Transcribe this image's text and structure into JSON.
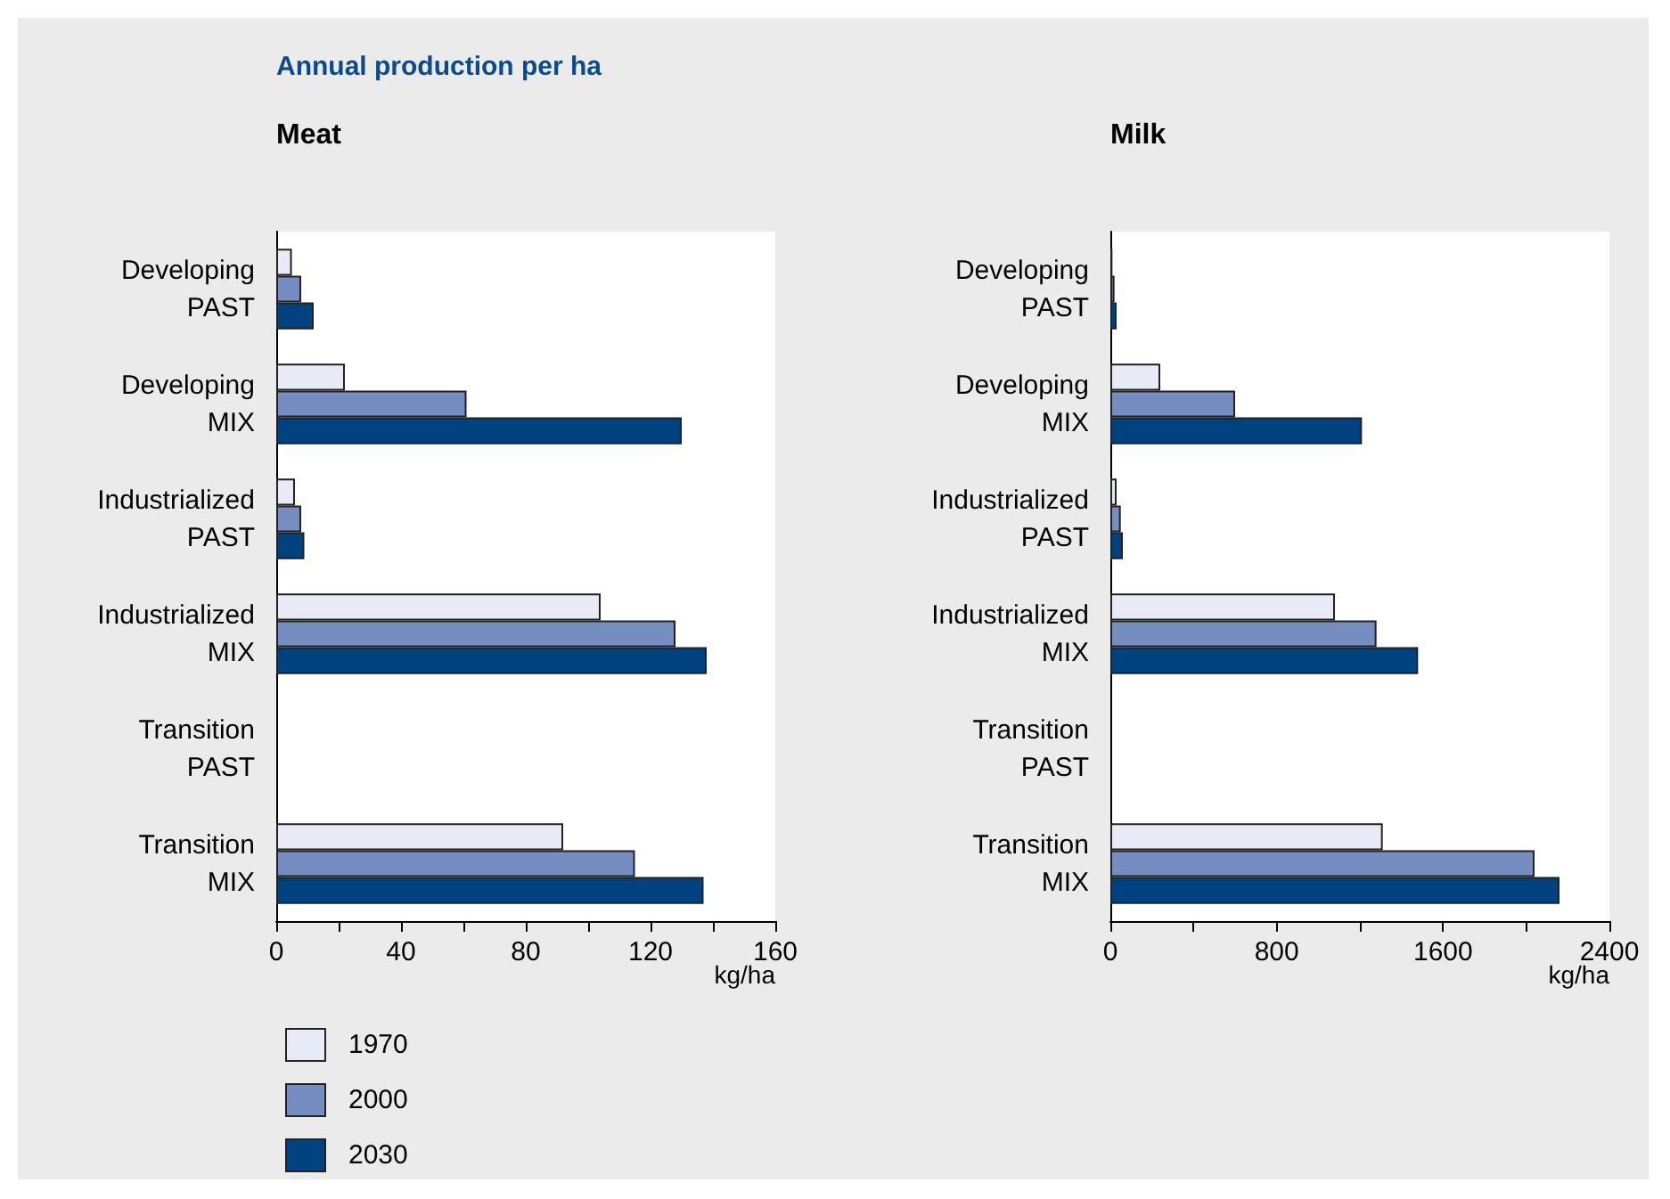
{
  "chart_data": [
    {
      "type": "bar",
      "orientation": "horizontal",
      "annotations": [
        "Annual production per ha"
      ],
      "title": "Meat",
      "xlabel": "kg/ha",
      "categories": [
        "Developing PAST",
        "Developing MIX",
        "Industrialized PAST",
        "Industrialized MIX",
        "Transition PAST",
        "Transition MIX"
      ],
      "series": [
        {
          "name": "1970",
          "color": "#e8ebf5",
          "values": [
            5,
            22,
            6,
            104,
            0,
            92
          ]
        },
        {
          "name": "2000",
          "color": "#768dc1",
          "values": [
            8,
            61,
            8,
            128,
            0,
            115
          ]
        },
        {
          "name": "2030",
          "color": "#00427f",
          "values": [
            12,
            130,
            9,
            138,
            0,
            137
          ]
        }
      ],
      "xlim": [
        0,
        160
      ],
      "xticks": [
        0,
        {
          "value": 20,
          "label": null
        },
        40,
        {
          "value": 60,
          "label": null
        },
        80,
        {
          "value": 100,
          "label": null
        },
        120,
        {
          "value": 140,
          "label": null
        },
        160
      ],
      "grid": false,
      "legend": "bottom left"
    },
    {
      "type": "bar",
      "orientation": "horizontal",
      "title": "Milk",
      "xlabel": "kg/ha",
      "categories": [
        "Developing PAST",
        "Developing MIX",
        "Industrialized PAST",
        "Industrialized MIX",
        "Transition PAST",
        "Transition MIX"
      ],
      "series": [
        {
          "name": "1970",
          "color": "#e8ebf5",
          "values": [
            10,
            240,
            30,
            1080,
            0,
            1310
          ]
        },
        {
          "name": "2000",
          "color": "#768dc1",
          "values": [
            20,
            600,
            50,
            1280,
            0,
            2040
          ]
        },
        {
          "name": "2030",
          "color": "#00427f",
          "values": [
            30,
            1210,
            60,
            1480,
            0,
            2160
          ]
        }
      ],
      "xlim": [
        0,
        2400
      ],
      "xticks": [
        0,
        {
          "value": 400,
          "label": null
        },
        800,
        {
          "value": 1200,
          "label": null
        },
        1600,
        {
          "value": 2000,
          "label": null
        },
        2400
      ],
      "grid": false,
      "legend": false
    }
  ]
}
